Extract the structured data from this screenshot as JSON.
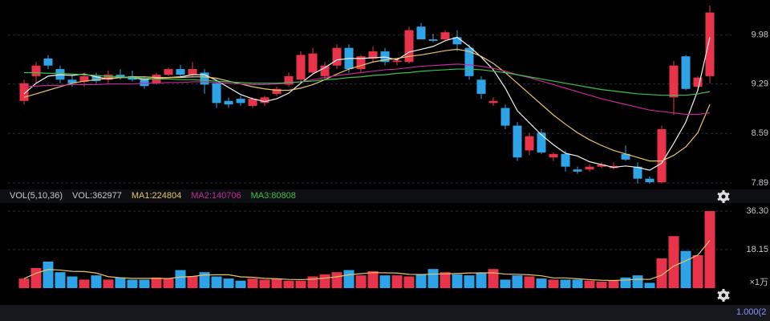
{
  "chart_data": [
    {
      "type": "candlestick",
      "up_color": "#e8344a",
      "down_color": "#2ea3e8",
      "open": [
        9.05,
        9.4,
        9.65,
        9.5,
        9.35,
        9.32,
        9.4,
        9.35,
        9.42,
        9.4,
        9.35,
        9.3,
        9.42,
        9.5,
        9.42,
        9.45,
        9.3,
        9.05,
        9.08,
        8.98,
        9.02,
        9.15,
        9.28,
        9.35,
        9.45,
        9.4,
        9.55,
        9.8,
        9.5,
        9.65,
        9.75,
        9.6,
        9.6,
        10.1,
        9.92,
        9.92,
        9.95,
        9.8,
        9.35,
        9.02,
        8.95,
        8.7,
        8.35,
        8.6,
        8.25,
        8.3,
        8.08,
        8.08,
        8.12,
        8.1,
        8.3,
        8.12,
        7.95,
        7.9,
        9.1,
        9.68,
        9.25,
        9.4
      ],
      "high": [
        9.35,
        9.6,
        9.7,
        9.55,
        9.42,
        9.45,
        9.45,
        9.48,
        9.5,
        9.48,
        9.4,
        9.45,
        9.52,
        9.56,
        9.6,
        9.5,
        9.35,
        9.1,
        9.12,
        9.1,
        9.12,
        9.25,
        9.45,
        9.75,
        9.8,
        9.6,
        9.85,
        9.85,
        9.7,
        9.82,
        9.8,
        9.65,
        10.1,
        10.15,
        10.0,
        10.05,
        10.05,
        9.85,
        9.4,
        9.1,
        9.0,
        8.75,
        8.6,
        8.65,
        8.32,
        8.35,
        8.12,
        8.15,
        8.18,
        8.18,
        8.42,
        8.18,
        7.98,
        8.7,
        9.62,
        9.7,
        9.4,
        10.4
      ],
      "low": [
        9.0,
        9.3,
        9.5,
        9.3,
        9.25,
        9.25,
        9.3,
        9.3,
        9.35,
        9.32,
        9.22,
        9.28,
        9.4,
        9.4,
        9.38,
        9.15,
        8.95,
        8.95,
        8.98,
        8.95,
        8.98,
        9.12,
        9.25,
        9.3,
        9.42,
        9.35,
        9.5,
        9.45,
        9.45,
        9.6,
        9.55,
        9.55,
        9.58,
        9.92,
        9.88,
        9.9,
        9.75,
        9.35,
        9.08,
        8.98,
        8.65,
        8.2,
        8.28,
        8.3,
        8.2,
        8.05,
        8.02,
        8.05,
        8.1,
        8.08,
        8.2,
        7.88,
        7.88,
        7.88,
        8.85,
        9.2,
        9.2,
        9.3
      ],
      "close": [
        9.3,
        9.55,
        9.55,
        9.35,
        9.3,
        9.4,
        9.33,
        9.42,
        9.38,
        9.35,
        9.26,
        9.42,
        9.5,
        9.42,
        9.5,
        9.28,
        9.02,
        9.0,
        9.02,
        9.08,
        9.1,
        9.22,
        9.4,
        9.7,
        9.72,
        9.55,
        9.8,
        9.5,
        9.68,
        9.75,
        9.6,
        9.62,
        10.05,
        9.92,
        9.9,
        10.02,
        9.85,
        9.4,
        9.15,
        9.05,
        8.7,
        8.25,
        8.55,
        8.32,
        8.3,
        8.12,
        8.05,
        8.12,
        8.15,
        8.13,
        8.22,
        7.95,
        7.9,
        8.65,
        9.55,
        9.22,
        9.38,
        10.3
      ],
      "series": [
        {
          "color": "#f2f2f2",
          "values": [
            9.15,
            9.3,
            9.4,
            9.42,
            9.41,
            9.43,
            9.39,
            9.36,
            9.38,
            9.38,
            9.35,
            9.37,
            9.38,
            9.39,
            9.42,
            9.42,
            9.34,
            9.24,
            9.14,
            9.08,
            9.04,
            9.08,
            9.16,
            9.3,
            9.43,
            9.52,
            9.63,
            9.65,
            9.65,
            9.66,
            9.67,
            9.63,
            9.74,
            9.78,
            9.82,
            9.9,
            9.95,
            9.82,
            9.67,
            9.49,
            9.23,
            8.91,
            8.74,
            8.57,
            8.43,
            8.31,
            8.27,
            8.19,
            8.15,
            8.11,
            8.13,
            8.11,
            8.07,
            8.17,
            8.45,
            8.75,
            9.2,
            9.95
          ]
        },
        {
          "color": "#e8c56a",
          "values": [
            9.1,
            9.15,
            9.2,
            9.25,
            9.3,
            9.33,
            9.35,
            9.37,
            9.38,
            9.39,
            9.39,
            9.38,
            9.38,
            9.38,
            9.39,
            9.39,
            9.37,
            9.33,
            9.29,
            9.25,
            9.22,
            9.2,
            9.2,
            9.23,
            9.28,
            9.35,
            9.43,
            9.5,
            9.55,
            9.6,
            9.63,
            9.65,
            9.68,
            9.7,
            9.73,
            9.76,
            9.78,
            9.75,
            9.68,
            9.58,
            9.45,
            9.3,
            9.15,
            9.0,
            8.85,
            8.72,
            8.6,
            8.5,
            8.42,
            8.35,
            8.3,
            8.25,
            8.2,
            8.2,
            8.28,
            8.4,
            8.6,
            9.0
          ]
        },
        {
          "color": "#c22a9a",
          "values": [
            9.25,
            9.26,
            9.27,
            9.27,
            9.28,
            9.28,
            9.28,
            9.29,
            9.29,
            9.29,
            9.3,
            9.3,
            9.31,
            9.31,
            9.32,
            9.32,
            9.31,
            9.3,
            9.29,
            9.28,
            9.28,
            9.29,
            9.3,
            9.32,
            9.35,
            9.38,
            9.41,
            9.43,
            9.45,
            9.47,
            9.49,
            9.5,
            9.52,
            9.54,
            9.55,
            9.56,
            9.57,
            9.56,
            9.54,
            9.51,
            9.47,
            9.42,
            9.38,
            9.33,
            9.28,
            9.23,
            9.18,
            9.13,
            9.08,
            9.04,
            9.0,
            8.96,
            8.92,
            8.9,
            8.88,
            8.86,
            8.86,
            8.88
          ]
        },
        {
          "color": "#3ec24a",
          "values": [
            9.45,
            9.45,
            9.44,
            9.44,
            9.43,
            9.42,
            9.41,
            9.4,
            9.39,
            9.38,
            9.37,
            9.36,
            9.36,
            9.35,
            9.35,
            9.34,
            9.33,
            9.32,
            9.31,
            9.3,
            9.3,
            9.3,
            9.31,
            9.32,
            9.33,
            9.35,
            9.36,
            9.38,
            9.39,
            9.41,
            9.42,
            9.44,
            9.45,
            9.47,
            9.48,
            9.49,
            9.5,
            9.5,
            9.49,
            9.47,
            9.45,
            9.42,
            9.39,
            9.36,
            9.33,
            9.3,
            9.27,
            9.24,
            9.21,
            9.19,
            9.17,
            9.15,
            9.14,
            9.13,
            9.13,
            9.13,
            9.15,
            9.18
          ]
        }
      ],
      "ylim": [
        7.81,
        10.42
      ],
      "yticks": [
        7.89,
        8.59,
        9.29,
        9.98
      ],
      "grid": true
    },
    {
      "type": "bar",
      "legend": [
        {
          "text": "VOL(5,10,36)",
          "color": "#c8c8cc"
        },
        {
          "text": "VOL:362977",
          "color": "#c8c8cc"
        },
        {
          "text": "MA1:224804",
          "color": "#e8c56a"
        },
        {
          "text": "MA2:140706",
          "color": "#c22a9a"
        },
        {
          "text": "MA3:80808",
          "color": "#3ec24a"
        }
      ],
      "values": [
        4.5,
        9.5,
        12.5,
        7.5,
        5.5,
        4.0,
        6.0,
        4.0,
        5.0,
        4.0,
        4.0,
        5.0,
        4.5,
        8.5,
        5.5,
        7.5,
        5.5,
        4.5,
        3.5,
        4.5,
        4.0,
        4.5,
        3.5,
        3.5,
        5.5,
        6.5,
        7.5,
        8.5,
        6.0,
        8.0,
        6.0,
        6.0,
        5.5,
        6.5,
        9.0,
        7.5,
        6.5,
        6.0,
        7.0,
        9.0,
        4.0,
        6.0,
        5.5,
        4.5,
        4.0,
        4.0,
        4.0,
        3.5,
        3.0,
        3.5,
        5.0,
        6.0,
        2.5,
        14.0,
        24.5,
        17.5,
        15.5,
        36.2977
      ],
      "series": [
        {
          "color": "#e8c56a",
          "values": [
            4.5,
            7,
            8.8,
            8.5,
            7.9,
            7.8,
            7.1,
            5.4,
            4.9,
            4.6,
            4.6,
            4.6,
            4.5,
            5.2,
            5.5,
            6.2,
            6.3,
            6.3,
            5.3,
            5.1,
            4.6,
            4.4,
            4.1,
            4.0,
            4.2,
            4.7,
            5.3,
            6.3,
            6.8,
            7.3,
            7.2,
            7.1,
            6.5,
            6.4,
            6.6,
            6.7,
            6.9,
            7.1,
            7.2,
            7.2,
            6.6,
            6.5,
            6.3,
            5.8,
            4.8,
            4.8,
            4.4,
            4.0,
            3.7,
            3.6,
            3.8,
            4.2,
            4.1,
            6.1,
            10.4,
            12.9,
            15.6,
            22.4804
          ]
        }
      ],
      "ylim": [
        0,
        38.6
      ],
      "yticks": [
        18.15,
        {
          "value": 36.3,
          "label": "36.30"
        }
      ],
      "y_unit": "×1万",
      "grid": true
    },
    {
      "type": "indicator",
      "label": "1.000(2"
    }
  ]
}
